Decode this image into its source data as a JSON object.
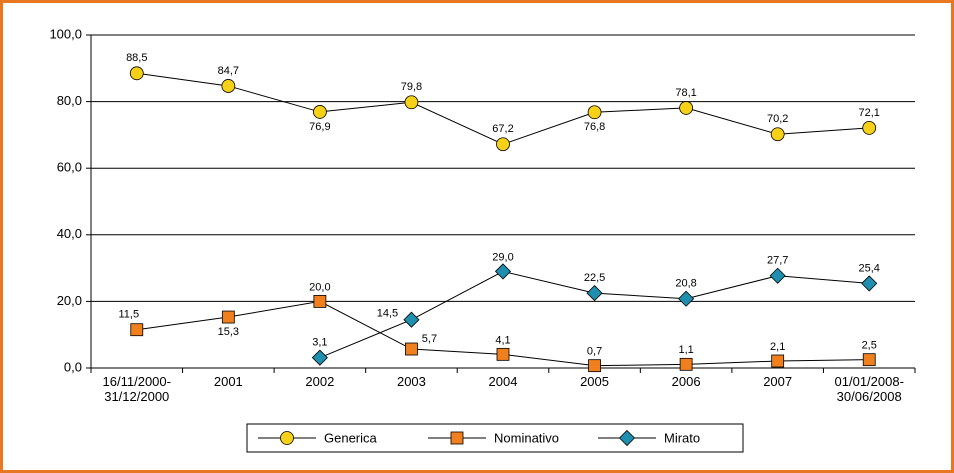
{
  "chart_data": {
    "type": "line",
    "categories": [
      "16/11/2000-\n31/12/2000",
      "2001",
      "2002",
      "2003",
      "2004",
      "2005",
      "2006",
      "2007",
      "01/01/2008-\n30/06/2008"
    ],
    "series": [
      {
        "name": "Generica",
        "color": "#f7d117",
        "marker": "circle",
        "values": [
          88.5,
          84.7,
          76.9,
          79.8,
          67.2,
          76.8,
          78.1,
          70.2,
          72.1
        ],
        "value_labels": [
          "88,5",
          "84,7",
          "76,9",
          "79,8",
          "67,2",
          "76,8",
          "78,1",
          "70,2",
          "72,1"
        ]
      },
      {
        "name": "Nominativo",
        "color": "#f07f1e",
        "marker": "square",
        "values": [
          11.5,
          15.3,
          20.0,
          5.7,
          4.1,
          0.7,
          1.1,
          2.1,
          2.5
        ],
        "value_labels": [
          "11,5",
          "15,3",
          "20,0",
          "5,7",
          "4,1",
          "0,7",
          "1,1",
          "2,1",
          "2,5"
        ]
      },
      {
        "name": "Mirato",
        "color": "#1e8fae",
        "marker": "diamond",
        "values": [
          null,
          null,
          3.1,
          14.5,
          29.0,
          22.5,
          20.8,
          27.7,
          25.4
        ],
        "value_labels": [
          null,
          null,
          "3,1",
          "14,5",
          "29,0",
          "22,5",
          "20,8",
          "27,7",
          "25,4"
        ]
      }
    ],
    "ylim": [
      0,
      100
    ],
    "yticks": [
      {
        "value": 0,
        "label": "0,0"
      },
      {
        "value": 20,
        "label": "20,0"
      },
      {
        "value": 40,
        "label": "40,0"
      },
      {
        "value": 60,
        "label": "60,0"
      },
      {
        "value": 80,
        "label": "80,0"
      },
      {
        "value": 100,
        "label": "100,0"
      }
    ],
    "grid": true,
    "legend": "bottom"
  }
}
